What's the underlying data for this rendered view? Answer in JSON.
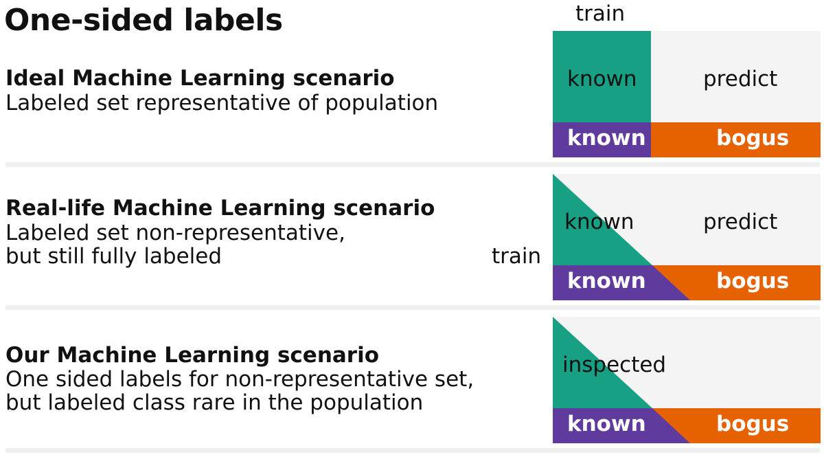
{
  "title": "One-sided labels",
  "colors": {
    "teal": "#18a085",
    "purple": "#5e3b9c",
    "orange": "#e66100",
    "grey": "#f4f4f4",
    "divider": "#efefef"
  },
  "scenarios": [
    {
      "heading": "Ideal Machine Learning scenario",
      "lines": [
        "Labeled set representative of population"
      ],
      "diagram": {
        "train_label": "train",
        "top_left": "known",
        "top_right": "predict",
        "bottom_left": "known",
        "bottom_right": "bogus"
      }
    },
    {
      "heading": "Real-life Machine Learning scenario",
      "lines": [
        "Labeled set non-representative,",
        "but still fully labeled"
      ],
      "diagram": {
        "train_label": "train",
        "top_left": "known",
        "top_right": "predict",
        "bottom_left": "known",
        "bottom_right": "bogus"
      }
    },
    {
      "heading": "Our Machine Learning scenario",
      "lines": [
        "One sided labels for non-representative set,",
        "but labeled class rare in the population"
      ],
      "diagram": {
        "top_left": "inspected",
        "bottom_left": "known",
        "bottom_right": "bogus"
      }
    }
  ]
}
